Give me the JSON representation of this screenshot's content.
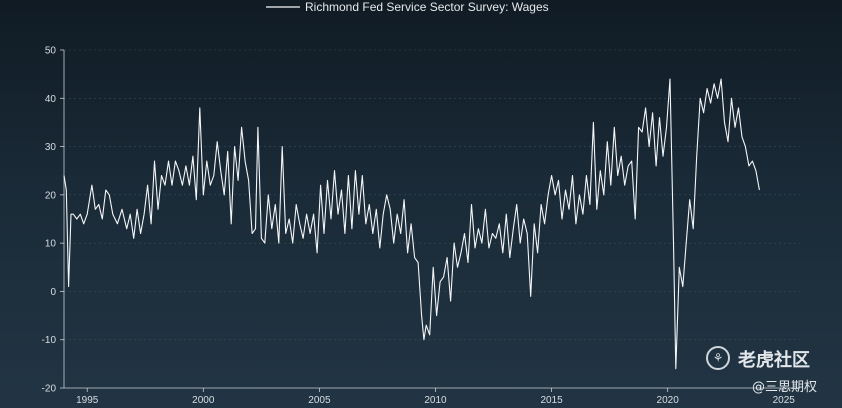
{
  "chart_data": {
    "type": "line",
    "title": "",
    "xlabel": "",
    "ylabel": "",
    "legend": {
      "placement": "top-center"
    },
    "grid": true,
    "xlim": [
      1994.0,
      2025.7
    ],
    "ylim": [
      -20,
      50
    ],
    "x_ticks": [
      1995,
      2000,
      2005,
      2010,
      2015,
      2020,
      2025
    ],
    "y_ticks": [
      -20,
      -10,
      0,
      10,
      20,
      30,
      40,
      50
    ],
    "series": [
      {
        "name": "Richmond Fed Service Sector Survey: Wages",
        "color": "#f4f6f8",
        "points": [
          [
            1994.0,
            24
          ],
          [
            1994.1,
            21
          ],
          [
            1994.2,
            1
          ],
          [
            1994.3,
            16
          ],
          [
            1994.4,
            16
          ],
          [
            1994.55,
            15
          ],
          [
            1994.7,
            16
          ],
          [
            1994.85,
            14
          ],
          [
            1995.0,
            16
          ],
          [
            1995.2,
            22
          ],
          [
            1995.35,
            17
          ],
          [
            1995.5,
            18
          ],
          [
            1995.65,
            15
          ],
          [
            1995.8,
            21
          ],
          [
            1995.95,
            20
          ],
          [
            1996.1,
            16
          ],
          [
            1996.3,
            14
          ],
          [
            1996.5,
            17
          ],
          [
            1996.7,
            13
          ],
          [
            1996.85,
            16
          ],
          [
            1997.0,
            11
          ],
          [
            1997.15,
            17
          ],
          [
            1997.3,
            12
          ],
          [
            1997.45,
            16
          ],
          [
            1997.6,
            22
          ],
          [
            1997.75,
            14
          ],
          [
            1997.9,
            27
          ],
          [
            1998.05,
            17
          ],
          [
            1998.2,
            24
          ],
          [
            1998.35,
            22
          ],
          [
            1998.5,
            27
          ],
          [
            1998.65,
            22
          ],
          [
            1998.8,
            27
          ],
          [
            1998.95,
            25
          ],
          [
            1999.1,
            22
          ],
          [
            1999.25,
            26
          ],
          [
            1999.4,
            22
          ],
          [
            1999.55,
            28
          ],
          [
            1999.7,
            19
          ],
          [
            1999.85,
            38
          ],
          [
            2000.0,
            20
          ],
          [
            2000.15,
            27
          ],
          [
            2000.3,
            22
          ],
          [
            2000.45,
            24
          ],
          [
            2000.6,
            31
          ],
          [
            2000.75,
            25
          ],
          [
            2000.9,
            20
          ],
          [
            2001.05,
            29
          ],
          [
            2001.2,
            14
          ],
          [
            2001.35,
            30
          ],
          [
            2001.5,
            23
          ],
          [
            2001.65,
            34
          ],
          [
            2001.8,
            27
          ],
          [
            2001.95,
            23
          ],
          [
            2002.1,
            12
          ],
          [
            2002.25,
            13
          ],
          [
            2002.35,
            34
          ],
          [
            2002.5,
            11
          ],
          [
            2002.65,
            10
          ],
          [
            2002.8,
            20
          ],
          [
            2002.95,
            13
          ],
          [
            2003.1,
            18
          ],
          [
            2003.25,
            10
          ],
          [
            2003.4,
            30
          ],
          [
            2003.55,
            12
          ],
          [
            2003.7,
            15
          ],
          [
            2003.85,
            10
          ],
          [
            2004.0,
            18
          ],
          [
            2004.15,
            14
          ],
          [
            2004.3,
            11
          ],
          [
            2004.45,
            16
          ],
          [
            2004.6,
            12
          ],
          [
            2004.75,
            16
          ],
          [
            2004.9,
            8
          ],
          [
            2005.05,
            22
          ],
          [
            2005.2,
            12
          ],
          [
            2005.35,
            23
          ],
          [
            2005.5,
            15
          ],
          [
            2005.65,
            25
          ],
          [
            2005.8,
            16
          ],
          [
            2005.95,
            21
          ],
          [
            2006.1,
            12
          ],
          [
            2006.25,
            24
          ],
          [
            2006.4,
            13
          ],
          [
            2006.55,
            25
          ],
          [
            2006.7,
            16
          ],
          [
            2006.85,
            24
          ],
          [
            2007.0,
            14
          ],
          [
            2007.15,
            18
          ],
          [
            2007.3,
            12
          ],
          [
            2007.45,
            17
          ],
          [
            2007.6,
            9
          ],
          [
            2007.75,
            16
          ],
          [
            2007.9,
            20
          ],
          [
            2008.05,
            17
          ],
          [
            2008.2,
            10
          ],
          [
            2008.35,
            16
          ],
          [
            2008.5,
            12
          ],
          [
            2008.65,
            19
          ],
          [
            2008.8,
            8
          ],
          [
            2008.95,
            14
          ],
          [
            2009.1,
            7
          ],
          [
            2009.25,
            6
          ],
          [
            2009.4,
            -5
          ],
          [
            2009.5,
            -10
          ],
          [
            2009.6,
            -7
          ],
          [
            2009.75,
            -9
          ],
          [
            2009.9,
            5
          ],
          [
            2010.05,
            -5
          ],
          [
            2010.2,
            2
          ],
          [
            2010.35,
            3
          ],
          [
            2010.5,
            7
          ],
          [
            2010.65,
            -2
          ],
          [
            2010.8,
            10
          ],
          [
            2010.95,
            5
          ],
          [
            2011.1,
            8
          ],
          [
            2011.25,
            12
          ],
          [
            2011.4,
            6
          ],
          [
            2011.55,
            18
          ],
          [
            2011.7,
            9
          ],
          [
            2011.85,
            13
          ],
          [
            2012.0,
            10
          ],
          [
            2012.15,
            17
          ],
          [
            2012.3,
            9
          ],
          [
            2012.45,
            12
          ],
          [
            2012.6,
            11
          ],
          [
            2012.75,
            14
          ],
          [
            2012.9,
            8
          ],
          [
            2013.05,
            16
          ],
          [
            2013.2,
            7
          ],
          [
            2013.35,
            13
          ],
          [
            2013.5,
            18
          ],
          [
            2013.65,
            10
          ],
          [
            2013.8,
            15
          ],
          [
            2013.95,
            12
          ],
          [
            2014.1,
            -1
          ],
          [
            2014.25,
            14
          ],
          [
            2014.4,
            8
          ],
          [
            2014.55,
            18
          ],
          [
            2014.7,
            14
          ],
          [
            2014.85,
            20
          ],
          [
            2015.0,
            24
          ],
          [
            2015.15,
            20
          ],
          [
            2015.3,
            23
          ],
          [
            2015.45,
            15
          ],
          [
            2015.6,
            21
          ],
          [
            2015.75,
            17
          ],
          [
            2015.9,
            24
          ],
          [
            2016.05,
            14
          ],
          [
            2016.2,
            20
          ],
          [
            2016.35,
            16
          ],
          [
            2016.5,
            24
          ],
          [
            2016.65,
            18
          ],
          [
            2016.8,
            35
          ],
          [
            2016.95,
            17
          ],
          [
            2017.1,
            25
          ],
          [
            2017.25,
            20
          ],
          [
            2017.4,
            31
          ],
          [
            2017.55,
            22
          ],
          [
            2017.7,
            34
          ],
          [
            2017.85,
            24
          ],
          [
            2018.0,
            28
          ],
          [
            2018.15,
            22
          ],
          [
            2018.3,
            26
          ],
          [
            2018.45,
            27
          ],
          [
            2018.6,
            15
          ],
          [
            2018.75,
            34
          ],
          [
            2018.9,
            33
          ],
          [
            2019.05,
            38
          ],
          [
            2019.2,
            30
          ],
          [
            2019.35,
            37
          ],
          [
            2019.5,
            26
          ],
          [
            2019.65,
            36
          ],
          [
            2019.8,
            28
          ],
          [
            2019.95,
            34
          ],
          [
            2020.1,
            44
          ],
          [
            2020.25,
            10
          ],
          [
            2020.35,
            -16
          ],
          [
            2020.5,
            5
          ],
          [
            2020.65,
            1
          ],
          [
            2020.8,
            10
          ],
          [
            2020.95,
            19
          ],
          [
            2021.1,
            13
          ],
          [
            2021.25,
            28
          ],
          [
            2021.4,
            40
          ],
          [
            2021.55,
            37
          ],
          [
            2021.7,
            42
          ],
          [
            2021.85,
            39
          ],
          [
            2022.0,
            43
          ],
          [
            2022.15,
            40
          ],
          [
            2022.3,
            44
          ],
          [
            2022.45,
            35
          ],
          [
            2022.6,
            31
          ],
          [
            2022.75,
            40
          ],
          [
            2022.9,
            34
          ],
          [
            2023.05,
            38
          ],
          [
            2023.2,
            32
          ],
          [
            2023.35,
            30
          ],
          [
            2023.5,
            26
          ],
          [
            2023.65,
            27
          ],
          [
            2023.8,
            25
          ],
          [
            2023.95,
            21
          ]
        ]
      }
    ]
  },
  "watermark": {
    "logo_glyph": "⚘",
    "brand": "老虎社区",
    "user": "@三思期权"
  }
}
